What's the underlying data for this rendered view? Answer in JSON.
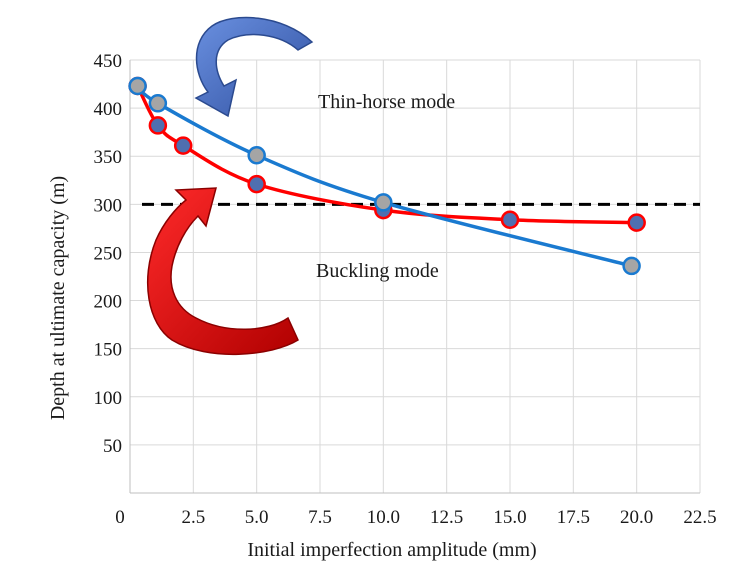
{
  "chart_data": {
    "type": "line",
    "xlabel": "Initial imperfection amplitude (mm)",
    "ylabel": "Depth at ultimate capacity (m)",
    "xlim": [
      0,
      22.5
    ],
    "ylim": [
      0,
      450
    ],
    "x_ticks": [
      "0",
      "2.5",
      "5.0",
      "7.5",
      "10.0",
      "12.5",
      "15.0",
      "17.5",
      "20.0",
      "22.5"
    ],
    "y_ticks": [
      "50",
      "100",
      "150",
      "200",
      "250",
      "300",
      "350",
      "400",
      "450"
    ],
    "grid": true,
    "series": [
      {
        "color": "#ff0000",
        "marker_color": "#4f6fb0",
        "points": [
          [
            0.3,
            423
          ],
          [
            1.1,
            382
          ],
          [
            2.1,
            361
          ],
          [
            5.0,
            321
          ],
          [
            10.0,
            294
          ],
          [
            15.0,
            284
          ],
          [
            20.0,
            281
          ]
        ]
      },
      {
        "color": "#1a7ad0",
        "marker_color": "#a5a5a5",
        "points": [
          [
            0.3,
            423
          ],
          [
            1.1,
            405
          ],
          [
            5.0,
            351
          ],
          [
            10.0,
            302
          ],
          [
            19.8,
            236
          ]
        ]
      }
    ],
    "reference_line": {
      "y": 300,
      "style": "dashed",
      "color": "#000000"
    },
    "annotations": [
      {
        "text": "Thin-horse mode",
        "arrow": "blue-curved-down",
        "arrow_color": "#3f6fc7"
      },
      {
        "text": "Buckling mode",
        "arrow": "red-curved-up",
        "arrow_color": "#e00000"
      }
    ]
  }
}
